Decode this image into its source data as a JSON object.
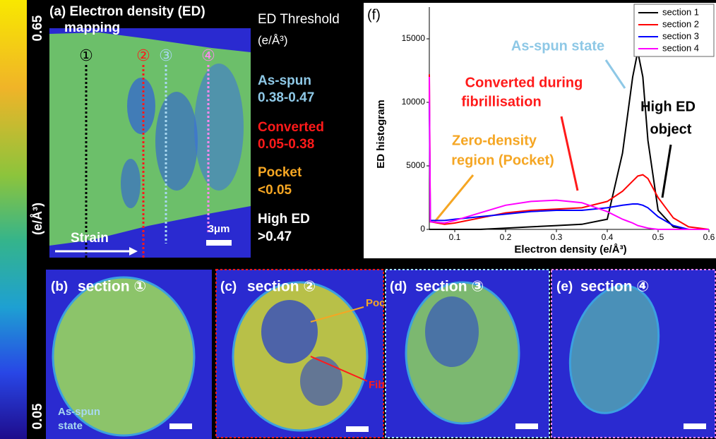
{
  "colorbar": {
    "max_label": "0.65",
    "unit": "(e/Å³)",
    "min_label": "0.05"
  },
  "panel_a": {
    "title_line1": "(a) Electron density (ED)",
    "title_line2": "mapping",
    "markers": [
      "①",
      "②",
      "③",
      "④"
    ],
    "strain": "Strain",
    "scale": "3μm"
  },
  "thresholds": {
    "title_line1": "ED Threshold",
    "title_line2": "(e/Å³)",
    "items": [
      {
        "name": "As-spun",
        "range": "0.38-0.47"
      },
      {
        "name": "Converted",
        "range": "0.05-0.38"
      },
      {
        "name": "Pocket",
        "range": "<0.05"
      },
      {
        "name": "High ED",
        "range": ">0.47"
      }
    ]
  },
  "chart_data": {
    "type": "line",
    "panel_label": "(f)",
    "xlabel": "Electron density (e/Å³)",
    "ylabel": "ED histogram",
    "x": [
      0.05,
      0.052,
      0.08,
      0.1,
      0.15,
      0.2,
      0.25,
      0.3,
      0.35,
      0.4,
      0.43,
      0.45,
      0.46,
      0.47,
      0.48,
      0.5,
      0.53,
      0.56,
      0.6
    ],
    "series": [
      {
        "name": "section 1",
        "color": "#000000",
        "values": [
          0,
          0,
          0,
          0,
          0,
          100,
          200,
          300,
          400,
          800,
          6000,
          12000,
          14000,
          12000,
          7000,
          1500,
          200,
          0,
          0
        ]
      },
      {
        "name": "section 2",
        "color": "#ff0000",
        "values": [
          12200,
          600,
          400,
          500,
          900,
          1300,
          1500,
          1600,
          1700,
          2200,
          3000,
          3800,
          4200,
          4300,
          4000,
          2500,
          900,
          200,
          0
        ]
      },
      {
        "name": "section 3",
        "color": "#0000ff",
        "values": [
          10000,
          700,
          700,
          800,
          1000,
          1200,
          1400,
          1500,
          1500,
          1700,
          1900,
          2000,
          2000,
          1900,
          1700,
          1000,
          300,
          0,
          0
        ]
      },
      {
        "name": "section 4",
        "color": "#ff00ff",
        "values": [
          12000,
          600,
          500,
          700,
          1300,
          1900,
          2200,
          2300,
          2100,
          1400,
          800,
          500,
          300,
          200,
          100,
          0,
          0,
          0,
          0
        ]
      }
    ],
    "xlim": [
      0.05,
      0.6
    ],
    "ylim": [
      0,
      17500
    ],
    "xticks": [
      0.1,
      0.2,
      0.3,
      0.4,
      0.5,
      0.6
    ],
    "yticks": [
      0,
      5000,
      10000,
      15000
    ],
    "legend": "upper right",
    "annotations": [
      {
        "lines": [
          "As-spun state"
        ],
        "color": "#8ec8e6"
      },
      {
        "lines": [
          "Converted during",
          "fibrillisation"
        ],
        "color": "#ff1a1a"
      },
      {
        "lines": [
          "High ED",
          "object"
        ],
        "color": "#000000"
      },
      {
        "lines": [
          "Zero-density",
          "region (Pocket)"
        ],
        "color": "#f5a623"
      }
    ]
  },
  "sections": [
    {
      "label": "(b)",
      "title": "section ①",
      "notes": [
        "As-spun",
        "state"
      ]
    },
    {
      "label": "(c)",
      "title": "section ②",
      "notes": [
        "Pocket",
        "Fibril"
      ]
    },
    {
      "label": "(d)",
      "title": "section ③",
      "notes": []
    },
    {
      "label": "(e)",
      "title": "section ④",
      "notes": []
    }
  ]
}
